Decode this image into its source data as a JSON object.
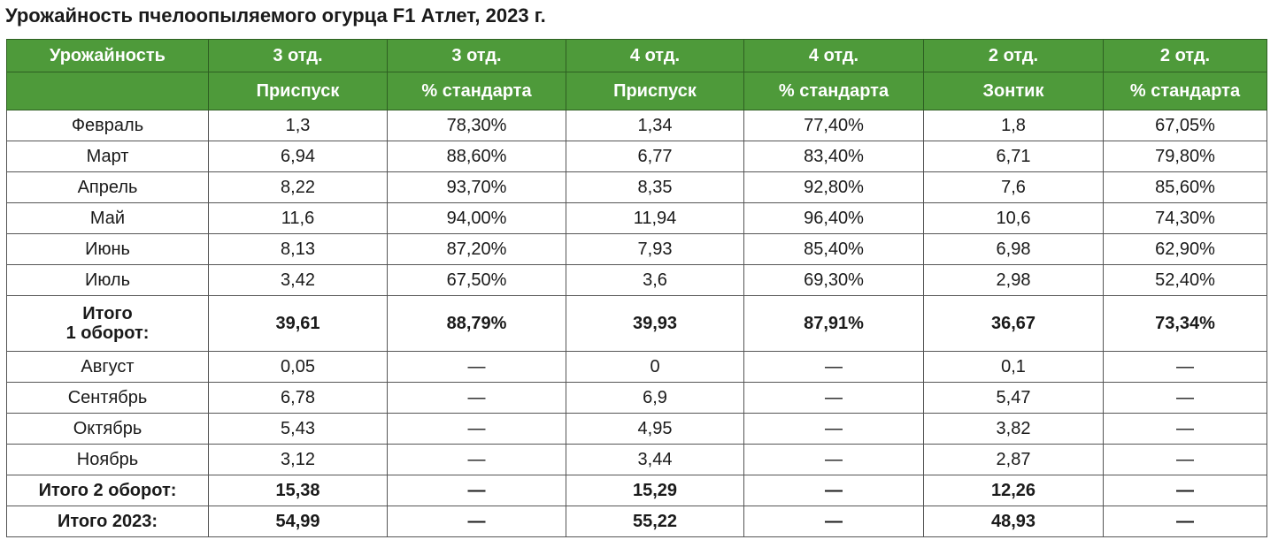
{
  "title": "Урожайность пчелоопыляемого огурца F1 Атлет, 2023 г.",
  "header": {
    "row1": [
      "Урожайность",
      "3 отд.",
      "3 отд.",
      "4 отд.",
      "4 отд.",
      "2 отд.",
      "2 отд."
    ],
    "row2": [
      "",
      "Приспуск",
      "% стандарта",
      "Приспуск",
      "% стандарта",
      "Зонтик",
      "% стандарта"
    ]
  },
  "rows": [
    {
      "cells": [
        "Февраль",
        "1,3",
        "78,30%",
        "1,34",
        "77,40%",
        "1,8",
        "67,05%"
      ],
      "bold": false
    },
    {
      "cells": [
        "Март",
        "6,94",
        "88,60%",
        "6,77",
        "83,40%",
        "6,71",
        "79,80%"
      ],
      "bold": false
    },
    {
      "cells": [
        "Апрель",
        "8,22",
        "93,70%",
        "8,35",
        "92,80%",
        "7,6",
        "85,60%"
      ],
      "bold": false
    },
    {
      "cells": [
        "Май",
        "11,6",
        "94,00%",
        "11,94",
        "96,40%",
        "10,6",
        "74,30%"
      ],
      "bold": false
    },
    {
      "cells": [
        "Июнь",
        "8,13",
        "87,20%",
        "7,93",
        "85,40%",
        "6,98",
        "62,90%"
      ],
      "bold": false
    },
    {
      "cells": [
        "Июль",
        "3,42",
        "67,50%",
        "3,6",
        "69,30%",
        "2,98",
        "52,40%"
      ],
      "bold": false
    },
    {
      "cells": [
        "Итого\n1 оборот:",
        "39,61",
        "88,79%",
        "39,93",
        "87,91%",
        "36,67",
        "73,34%"
      ],
      "bold": true
    },
    {
      "cells": [
        "Август",
        "0,05",
        "—",
        "0",
        "—",
        "0,1",
        "—"
      ],
      "bold": false
    },
    {
      "cells": [
        "Сентябрь",
        "6,78",
        "—",
        "6,9",
        "—",
        "5,47",
        "—"
      ],
      "bold": false
    },
    {
      "cells": [
        "Октябрь",
        "5,43",
        "—",
        "4,95",
        "—",
        "3,82",
        "—"
      ],
      "bold": false
    },
    {
      "cells": [
        "Ноябрь",
        "3,12",
        "—",
        "3,44",
        "—",
        "2,87",
        "—"
      ],
      "bold": false
    },
    {
      "cells": [
        "Итого 2 оборот:",
        "15,38",
        "—",
        "15,29",
        "—",
        "12,26",
        "—"
      ],
      "bold": true
    },
    {
      "cells": [
        "Итого 2023:",
        "54,99",
        "—",
        "55,22",
        "—",
        "48,93",
        "—"
      ],
      "bold": true
    }
  ],
  "colors": {
    "header_bg": "#4e9a3a",
    "header_text": "#ffffff",
    "grid": "#555555"
  }
}
